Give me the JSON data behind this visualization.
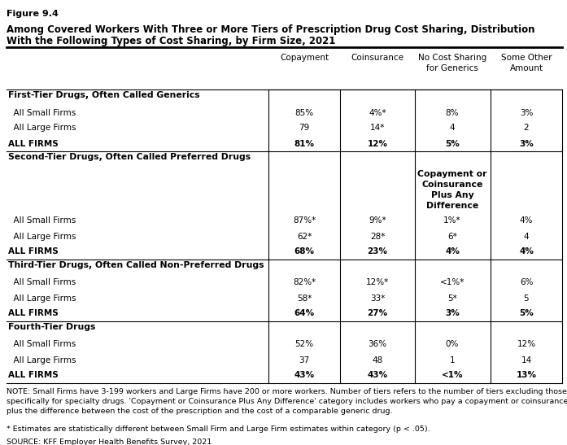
{
  "figure_label": "Figure 9.4",
  "title_line1": "Among Covered Workers With Three or More Tiers of Prescription Drug Cost Sharing, Distribution",
  "title_line2": "With the Following Types of Cost Sharing, by Firm Size, 2021",
  "col_headers": [
    "Copayment",
    "Coinsurance",
    "No Cost Sharing\nfor Generics",
    "Some Other\nAmount"
  ],
  "col2_header_alt": "Copayment or\nCoinsurance\nPlus Any\nDifference",
  "sections": [
    {
      "section_title": "First-Tier Drugs, Often Called Generics",
      "has_col3_override": false,
      "rows": [
        {
          "label": "  All Small Firms",
          "bold": false,
          "values": [
            "85%",
            "4%*",
            "8%",
            "3%"
          ]
        },
        {
          "label": "  All Large Firms",
          "bold": false,
          "values": [
            "79",
            "14*",
            "4",
            "2"
          ]
        },
        {
          "label": "ALL FIRMS",
          "bold": true,
          "values": [
            "81%",
            "12%",
            "5%",
            "3%"
          ]
        }
      ]
    },
    {
      "section_title": "Second-Tier Drugs, Often Called Preferred Drugs",
      "has_col3_override": true,
      "rows": [
        {
          "label": "  All Small Firms",
          "bold": false,
          "values": [
            "87%*",
            "9%*",
            "1%*",
            "4%"
          ]
        },
        {
          "label": "  All Large Firms",
          "bold": false,
          "values": [
            "62*",
            "28*",
            "6*",
            "4"
          ]
        },
        {
          "label": "ALL FIRMS",
          "bold": true,
          "values": [
            "68%",
            "23%",
            "4%",
            "4%"
          ]
        }
      ]
    },
    {
      "section_title": "Third-Tier Drugs, Often Called Non-Preferred Drugs",
      "has_col3_override": false,
      "rows": [
        {
          "label": "  All Small Firms",
          "bold": false,
          "values": [
            "82%*",
            "12%*",
            "<1%*",
            "6%"
          ]
        },
        {
          "label": "  All Large Firms",
          "bold": false,
          "values": [
            "58*",
            "33*",
            "5*",
            "5"
          ]
        },
        {
          "label": "ALL FIRMS",
          "bold": true,
          "values": [
            "64%",
            "27%",
            "3%",
            "5%"
          ]
        }
      ]
    },
    {
      "section_title": "Fourth-Tier Drugs",
      "has_col3_override": false,
      "rows": [
        {
          "label": "  All Small Firms",
          "bold": false,
          "values": [
            "52%",
            "36%",
            "0%",
            "12%"
          ]
        },
        {
          "label": "  All Large Firms",
          "bold": false,
          "values": [
            "37",
            "48",
            "1",
            "14"
          ]
        },
        {
          "label": "ALL FIRMS",
          "bold": true,
          "values": [
            "43%",
            "43%",
            "<1%",
            "13%"
          ]
        }
      ]
    }
  ],
  "note": "NOTE: Small Firms have 3-199 workers and Large Firms have 200 or more workers. Number of tiers refers to the number of tiers excluding those\nspecifically for specialty drugs. 'Copayment or Coinsurance Plus Any Difference' category includes workers who pay a copayment or coinsurance\nplus the difference between the cost of the prescription and the cost of a comparable generic drug.",
  "footnote": "* Estimates are statistically different between Small Firm and Large Firm estimates within category (p < .05).",
  "source": "SOURCE: KFF Employer Health Benefits Survey, 2021"
}
